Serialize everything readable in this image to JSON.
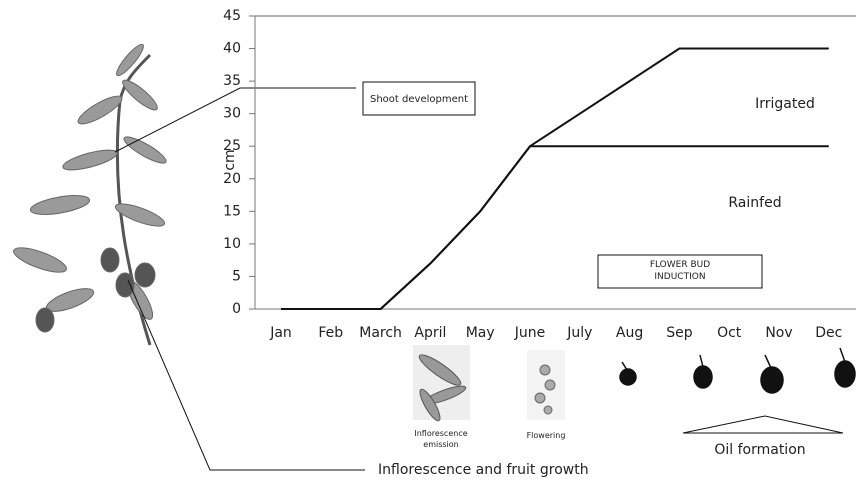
{
  "chart_data": {
    "type": "line",
    "y_label": "cm",
    "categories": [
      "Jan",
      "Feb",
      "March",
      "April",
      "May",
      "June",
      "July",
      "Aug",
      "Sep",
      "Oct",
      "Nov",
      "Dec"
    ],
    "series": [
      {
        "name": "Irrigated",
        "color": "#111111",
        "values": [
          0,
          0,
          0,
          7,
          15,
          25,
          30,
          35,
          40,
          40,
          40,
          40
        ]
      },
      {
        "name": "Rainfed",
        "color": "#111111",
        "values": [
          0,
          0,
          0,
          7,
          15,
          25,
          25,
          25,
          25,
          25,
          25,
          25
        ]
      }
    ],
    "ylim": [
      0,
      45
    ],
    "yticks": [
      0,
      5,
      10,
      15,
      20,
      25,
      30,
      35,
      40,
      45
    ],
    "grid": false,
    "annotations": {
      "shoot": "Shoot development",
      "bud": "FLOWER BUD INDUCTION",
      "inflorescence": "Inflorescence emission",
      "flowering": "Flowering",
      "oil": "Oil formation",
      "fruit": "Inflorescence and fruit growth"
    }
  }
}
